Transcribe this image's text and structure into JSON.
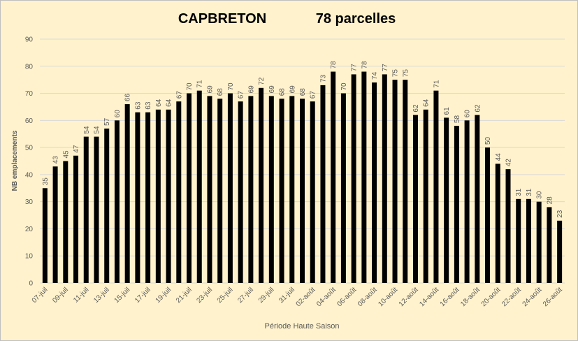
{
  "chart_data": {
    "type": "bar",
    "title": "CAPBRETON",
    "subtitle": "78 parcelles",
    "x_label": "Période Haute Saison",
    "y_label": "NB emplacements",
    "categories": [
      "07-juil",
      null,
      "09-juil",
      null,
      "11-juil",
      null,
      "13-juil",
      null,
      "15-juil",
      null,
      "17-juil",
      null,
      "19-juil",
      null,
      "21-juil",
      null,
      "23-juil",
      null,
      "25-juil",
      null,
      "27-juil",
      null,
      "29-juil",
      null,
      "31-juil",
      null,
      "02-août",
      null,
      "04-août",
      null,
      "06-août",
      null,
      "08-août",
      null,
      "10-août",
      null,
      "12-août",
      null,
      "14-août",
      null,
      "16-août",
      null,
      "18-août",
      null,
      "20-août",
      null,
      "22-août",
      null,
      "24-août",
      null,
      "26-août"
    ],
    "values": [
      35,
      43,
      45,
      47,
      54,
      54,
      57,
      60,
      66,
      63,
      63,
      64,
      64,
      67,
      70,
      71,
      69,
      68,
      70,
      67,
      69,
      72,
      69,
      68,
      69,
      68,
      67,
      73,
      78,
      70,
      77,
      78,
      74,
      77,
      75,
      75,
      62,
      64,
      71,
      61,
      58,
      60,
      62,
      50,
      44,
      42,
      31,
      31,
      30,
      28,
      23
    ],
    "color": "#000000",
    "ylim": [
      0,
      90
    ],
    "yticks": [
      0,
      10,
      20,
      30,
      40,
      50,
      60,
      70,
      80,
      90
    ],
    "grid": true
  }
}
